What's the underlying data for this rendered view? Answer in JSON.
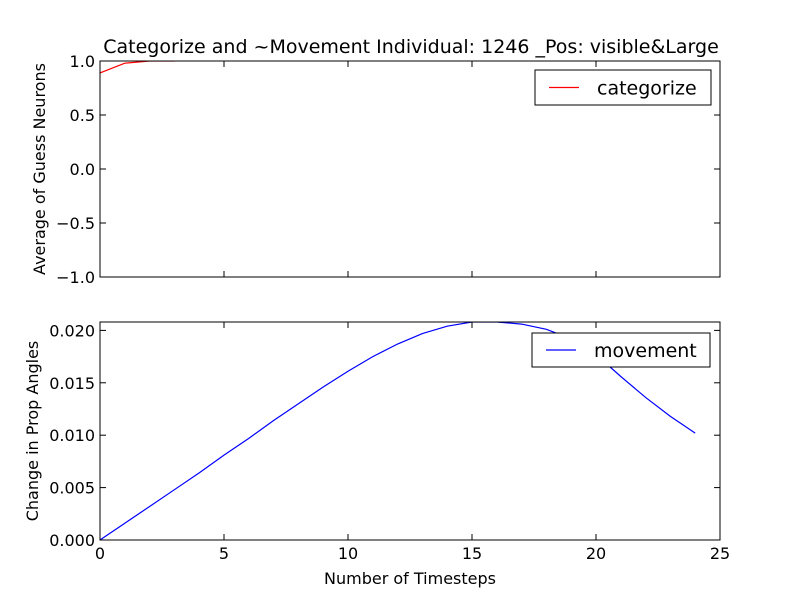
{
  "figure": {
    "title": "Categorize and ~Movement Individual: 1246 _Pos: visible&Large"
  },
  "chart_data": [
    {
      "type": "line",
      "ylabel": "Average of Guess Neurons",
      "xlabel": "",
      "xlim": [
        0,
        25
      ],
      "ylim": [
        -1.0,
        1.0
      ],
      "yticks": [
        1.0,
        0.5,
        0.0,
        -0.5,
        -1.0
      ],
      "ytick_labels": [
        "1.0",
        "0.5",
        "0.0",
        "−0.5",
        "−1.0"
      ],
      "grid": false,
      "legend_position": "top-right",
      "series": [
        {
          "name": "categorize",
          "color": "#ff0000",
          "x": [
            0,
            1,
            2,
            3
          ],
          "y": [
            0.89,
            0.98,
            1.0,
            1.0
          ]
        }
      ]
    },
    {
      "type": "line",
      "ylabel": "Change in Prop Angles",
      "xlabel": "Number of Timesteps",
      "xlim": [
        0,
        25
      ],
      "ylim": [
        0.0,
        0.0208
      ],
      "xticks": [
        0,
        5,
        10,
        15,
        20,
        25
      ],
      "xtick_labels": [
        "0",
        "5",
        "10",
        "15",
        "20",
        "25"
      ],
      "yticks": [
        0.0,
        0.005,
        0.01,
        0.015,
        0.02
      ],
      "ytick_labels": [
        "0.000",
        "0.005",
        "0.010",
        "0.015",
        "0.020"
      ],
      "grid": false,
      "legend_position": "top-right",
      "series": [
        {
          "name": "movement",
          "color": "#0000ff",
          "x": [
            0,
            1,
            2,
            3,
            4,
            5,
            6,
            7,
            8,
            9,
            10,
            11,
            12,
            13,
            14,
            15,
            16,
            17,
            18,
            19,
            20,
            21,
            22,
            23,
            24
          ],
          "y": [
            0.0,
            0.0016,
            0.0032,
            0.0048,
            0.0064,
            0.0081,
            0.0097,
            0.0114,
            0.013,
            0.0146,
            0.0161,
            0.0175,
            0.0187,
            0.0197,
            0.0204,
            0.0208,
            0.0208,
            0.0206,
            0.0201,
            0.0192,
            0.0177,
            0.0156,
            0.0136,
            0.0118,
            0.0102
          ]
        }
      ]
    }
  ]
}
